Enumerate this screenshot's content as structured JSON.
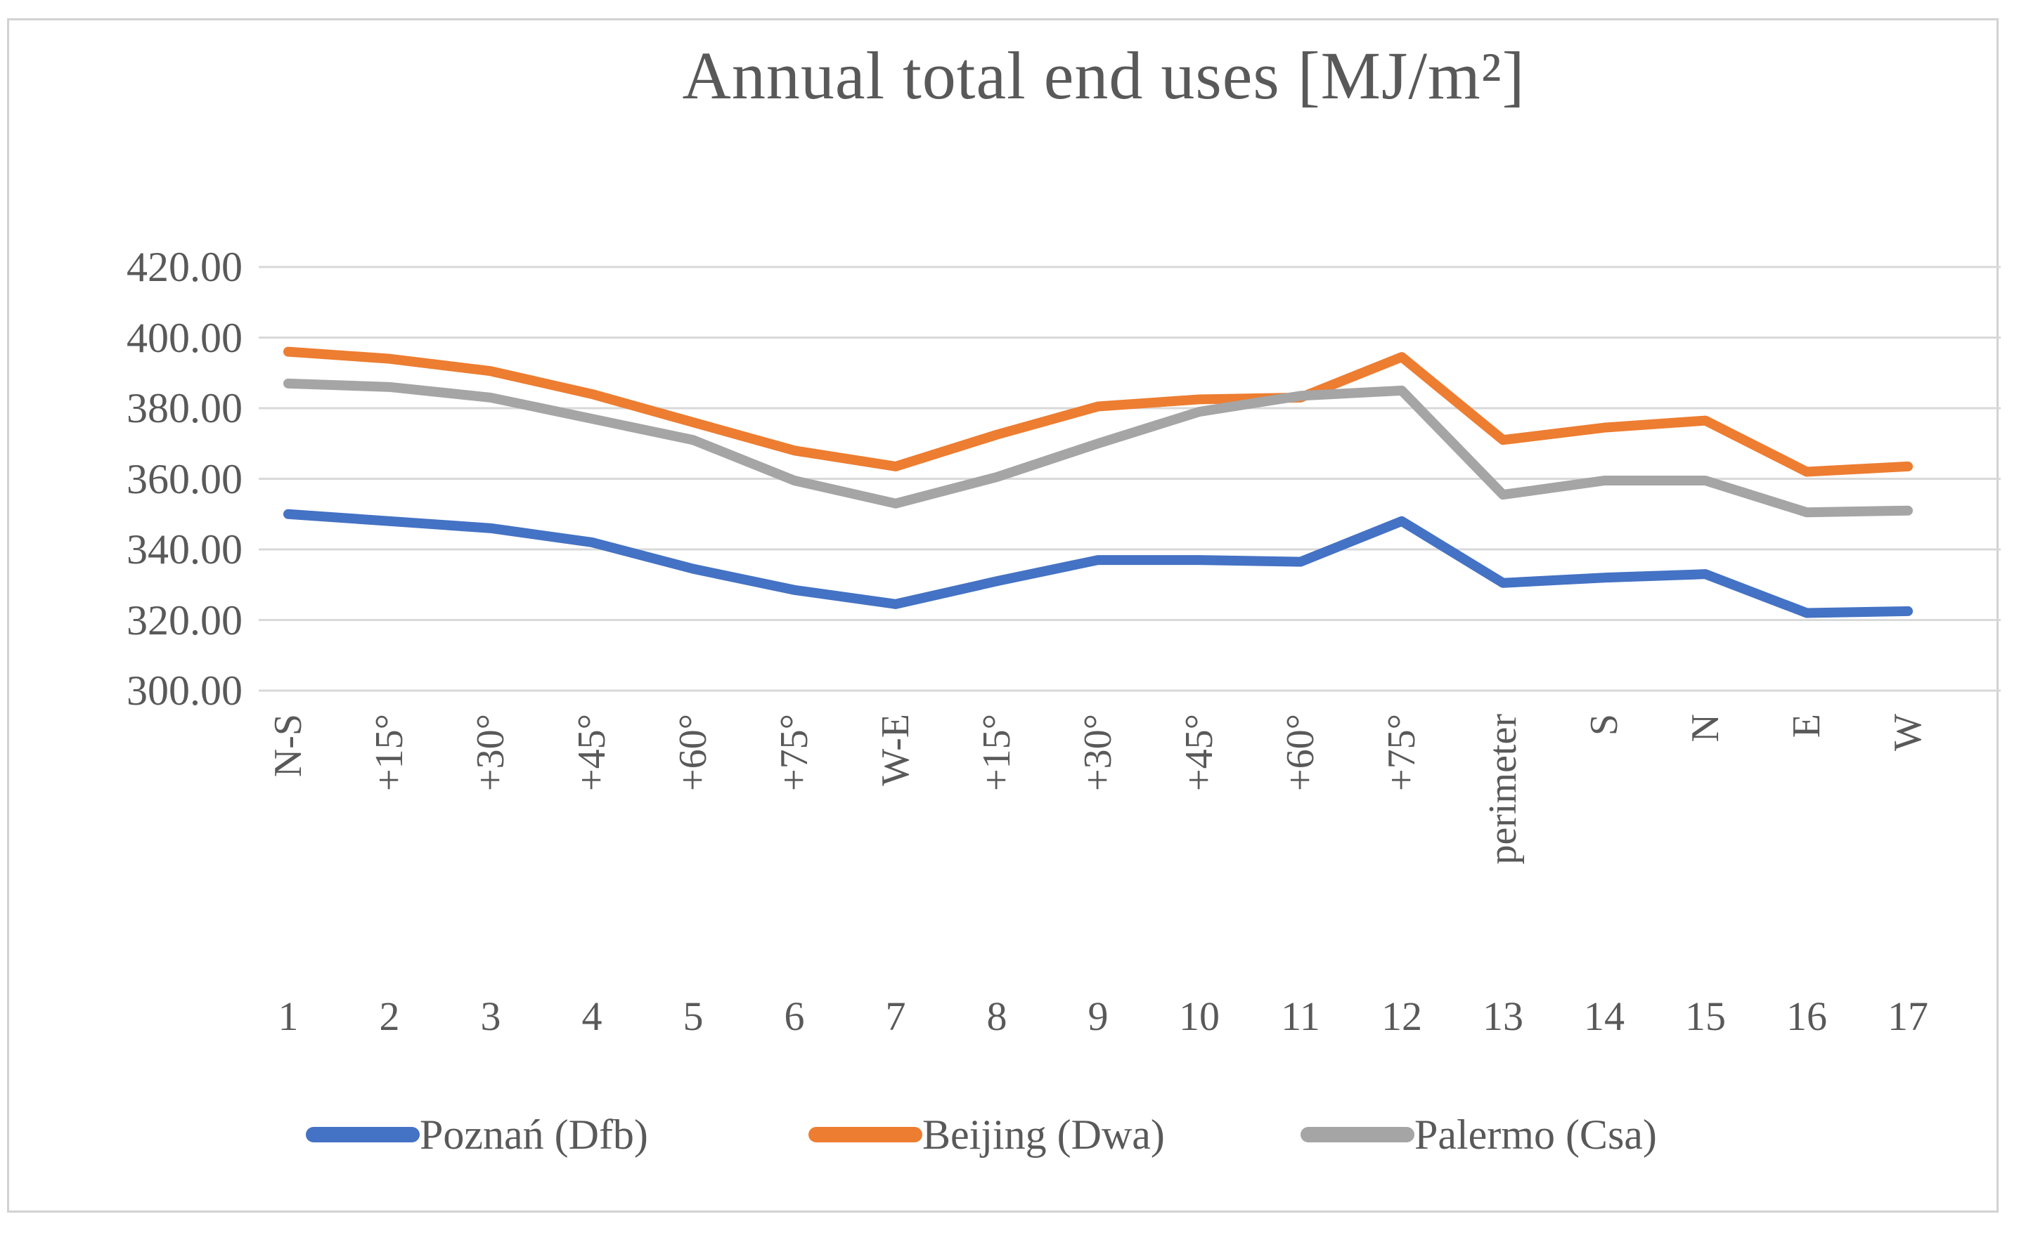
{
  "chart_data": {
    "type": "line",
    "title": "Annual total end uses [MJ/m²]",
    "categories": [
      "N-S",
      "+15°",
      "+30°",
      "+45°",
      "+60°",
      "+75°",
      "W-E",
      "+15°",
      "+30°",
      "+45°",
      "+60°",
      "+75°",
      "perimeter",
      "S",
      "N",
      "E",
      "W"
    ],
    "category_numbers": [
      "1",
      "2",
      "3",
      "4",
      "5",
      "6",
      "7",
      "8",
      "9",
      "10",
      "11",
      "12",
      "13",
      "14",
      "15",
      "16",
      "17"
    ],
    "series": [
      {
        "name": "Poznań (Dfb)",
        "color": "#4472C4",
        "values": [
          350,
          348,
          346,
          342,
          334.5,
          328.5,
          324.5,
          331,
          337,
          337,
          336.5,
          348,
          330.5,
          332,
          333,
          322,
          322.5
        ]
      },
      {
        "name": "Beijing (Dwa)",
        "color": "#ED7D31",
        "values": [
          396,
          394,
          390.5,
          384,
          376,
          368,
          363.5,
          372.5,
          380.5,
          382.5,
          383,
          394.5,
          371,
          374.5,
          376.5,
          362,
          363.5
        ]
      },
      {
        "name": "Palermo (Csa)",
        "color": "#A5A5A5",
        "values": [
          387,
          386,
          383,
          377,
          371,
          359.5,
          353,
          360.5,
          370,
          379,
          383.5,
          385,
          355.5,
          359.5,
          359.5,
          350.5,
          351
        ]
      }
    ],
    "y_axis": {
      "min": 300,
      "max": 420,
      "step": 20,
      "tick_labels": [
        "420.00",
        "400.00",
        "380.00",
        "360.00",
        "340.00",
        "320.00",
        "300.00"
      ]
    },
    "grid": true,
    "gridline_color": "#d9d9d9",
    "legend_position": "bottom",
    "ylim": [
      300,
      420
    ]
  },
  "text_color": "#595959"
}
